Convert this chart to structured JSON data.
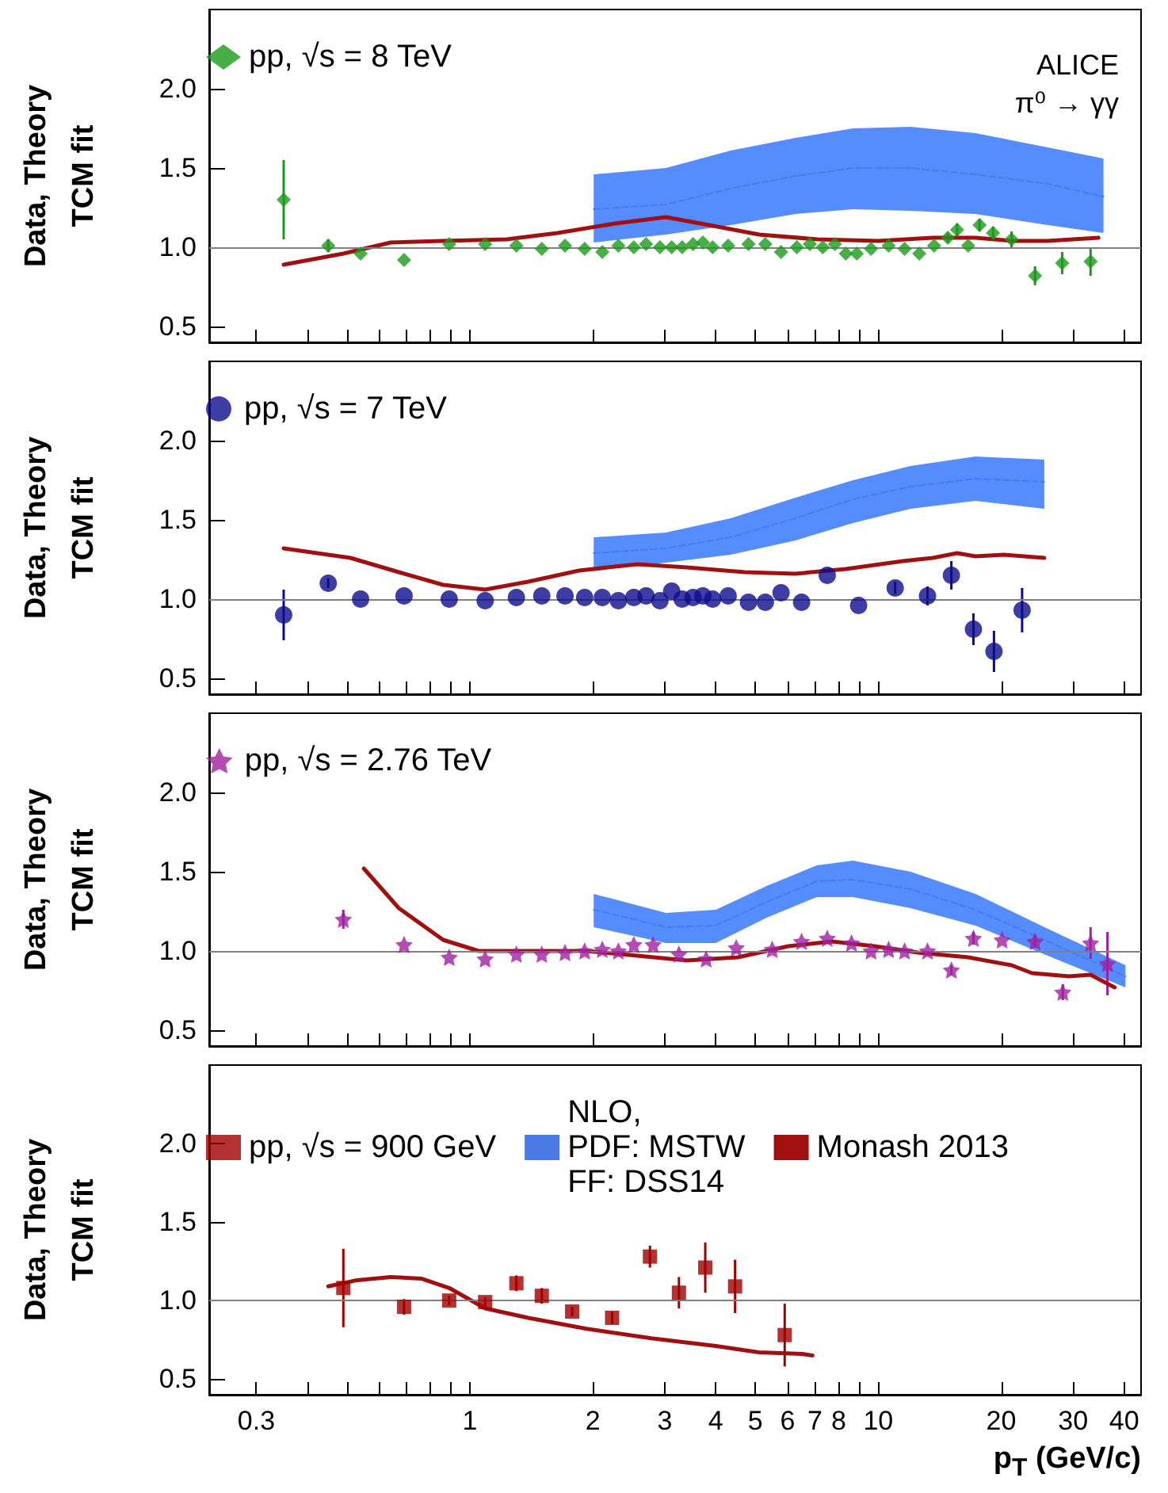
{
  "chart_data": [
    {
      "type": "scatter",
      "ylabel": "Data, Theory\nTCM fit",
      "annotations": [
        "ALICE",
        "π⁰ → γγ"
      ],
      "xlim": [
        0.23,
        44
      ],
      "xticks": [
        0.3,
        {
          "value": 0.4,
          "label": null
        },
        {
          "value": 0.5,
          "label": null
        },
        {
          "value": 0.6,
          "label": null
        },
        {
          "value": 0.7,
          "label": null
        },
        {
          "value": 0.8,
          "label": null
        },
        {
          "value": 0.9,
          "label": null
        },
        1,
        2,
        3,
        4,
        5,
        6,
        7,
        8,
        {
          "value": 9,
          "label": null
        },
        10,
        20,
        30,
        40
      ],
      "ylim": [
        0.4,
        2.5
      ],
      "yticks": [
        {
          "value": 0.5,
          "label": "0.5"
        },
        {
          "value": 1,
          "label": "1.0"
        },
        {
          "value": 1.5,
          "label": "1.5"
        },
        {
          "value": 2,
          "label": "2.0"
        }
      ],
      "tick_labels": "y",
      "legend": "top left",
      "ref_lines": [
        {
          "axis": "y",
          "value": 1,
          "color": "#808080"
        }
      ],
      "log": "x",
      "series": [
        {
          "name": "pp, √s = 8 TeV",
          "marker": "diamond",
          "color": "#1a9a1a",
          "x": [
            0.35,
            0.45,
            0.54,
            0.69,
            0.89,
            1.09,
            1.3,
            1.5,
            1.71,
            1.91,
            2.11,
            2.31,
            2.52,
            2.7,
            2.92,
            3.12,
            3.31,
            3.52,
            3.72,
            3.93,
            4.29,
            4.81,
            5.29,
            5.78,
            6.32,
            6.8,
            7.31,
            7.83,
            8.33,
            8.86,
            9.6,
            10.6,
            11.6,
            12.6,
            13.7,
            14.8,
            15.6,
            16.6,
            17.7,
            19.1,
            21.2,
            24.2,
            28.2,
            33.1
          ],
          "values": [
            1.3,
            1.01,
            0.96,
            0.92,
            1.02,
            1.02,
            1.01,
            0.99,
            1.01,
            0.99,
            0.97,
            1.01,
            1.0,
            1.02,
            1.0,
            1.0,
            1.0,
            1.02,
            1.03,
            1.0,
            1.01,
            1.02,
            1.02,
            0.97,
            1.0,
            1.02,
            1.0,
            1.02,
            0.96,
            0.96,
            0.99,
            1.01,
            0.99,
            0.96,
            1.01,
            1.06,
            1.11,
            1.01,
            1.14,
            1.09,
            1.05,
            0.82,
            0.9,
            0.91
          ],
          "errors": [
            0.25,
            0.04,
            null,
            null,
            null,
            null,
            null,
            null,
            null,
            null,
            null,
            null,
            null,
            null,
            null,
            null,
            null,
            null,
            null,
            null,
            null,
            null,
            null,
            null,
            null,
            null,
            null,
            null,
            null,
            null,
            null,
            null,
            null,
            null,
            null,
            0.03,
            0.04,
            null,
            0.04,
            0.04,
            0.05,
            0.06,
            0.07,
            0.09
          ]
        },
        {
          "type": "line",
          "line_style": "dashed",
          "color": "#4a7ae6",
          "x": [
            2.01,
            3.02,
            4.35,
            6.27,
            8.67,
            12.0,
            17.3,
            26.0,
            35.6
          ],
          "values": [
            1.24,
            1.27,
            1.37,
            1.45,
            1.5,
            1.5,
            1.46,
            1.4,
            1.32
          ],
          "lower": [
            1.03,
            1.08,
            1.14,
            1.21,
            1.24,
            1.23,
            1.21,
            1.14,
            1.09
          ],
          "upper": [
            1.46,
            1.5,
            1.61,
            1.69,
            1.75,
            1.76,
            1.72,
            1.63,
            1.56
          ]
        },
        {
          "type": "line",
          "line_style": "solid",
          "color": "#a01010",
          "x": [
            0.35,
            0.49,
            0.64,
            0.86,
            1.23,
            1.64,
            2.27,
            3.02,
            3.85,
            5.11,
            7.1,
            10,
            13.6,
            17.3,
            21.2,
            26,
            34.6
          ],
          "values": [
            0.89,
            0.96,
            1.03,
            1.04,
            1.05,
            1.09,
            1.15,
            1.19,
            1.14,
            1.08,
            1.05,
            1.04,
            1.06,
            1.06,
            1.04,
            1.04,
            1.06
          ]
        }
      ]
    },
    {
      "type": "scatter",
      "ylabel": "Data, Theory\nTCM fit",
      "xlim": [
        0.23,
        44
      ],
      "xticks": [
        0.3,
        {
          "value": 0.4,
          "label": null
        },
        {
          "value": 0.5,
          "label": null
        },
        {
          "value": 0.6,
          "label": null
        },
        {
          "value": 0.7,
          "label": null
        },
        {
          "value": 0.8,
          "label": null
        },
        {
          "value": 0.9,
          "label": null
        },
        1,
        2,
        3,
        4,
        5,
        6,
        7,
        8,
        {
          "value": 9,
          "label": null
        },
        10,
        20,
        30,
        40
      ],
      "ylim": [
        0.4,
        2.5
      ],
      "yticks": [
        {
          "value": 0.5,
          "label": "0.5"
        },
        {
          "value": 1,
          "label": "1.0"
        },
        {
          "value": 1.5,
          "label": "1.5"
        },
        {
          "value": 2,
          "label": "2.0"
        }
      ],
      "tick_labels": "y",
      "legend": "top left",
      "ref_lines": [
        {
          "axis": "y",
          "value": 1,
          "color": "#808080"
        }
      ],
      "log": "x",
      "series": [
        {
          "name": "pp, √s = 7 TeV",
          "marker": "circle",
          "color": "#0c0c8c",
          "x": [
            0.35,
            0.45,
            0.54,
            0.69,
            0.89,
            1.09,
            1.3,
            1.5,
            1.71,
            1.91,
            2.11,
            2.31,
            2.52,
            2.7,
            2.92,
            3.12,
            3.31,
            3.52,
            3.72,
            3.93,
            4.29,
            4.81,
            5.29,
            5.78,
            6.49,
            7.5,
            8.95,
            11.0,
            13.2,
            15.1,
            17.1,
            19.2,
            22.5
          ],
          "values": [
            0.9,
            1.1,
            1.0,
            1.02,
            1.0,
            0.99,
            1.01,
            1.02,
            1.02,
            1.01,
            1.01,
            0.99,
            1.01,
            1.02,
            0.99,
            1.05,
            1.0,
            1.01,
            1.02,
            1.0,
            1.02,
            0.98,
            0.98,
            1.04,
            0.98,
            1.15,
            0.96,
            1.07,
            1.02,
            1.15,
            0.81,
            0.67,
            0.93
          ],
          "errors": [
            0.16,
            0.03,
            null,
            null,
            null,
            null,
            null,
            null,
            null,
            null,
            null,
            null,
            null,
            null,
            null,
            null,
            null,
            null,
            null,
            null,
            null,
            null,
            null,
            null,
            null,
            null,
            null,
            0.04,
            0.06,
            0.09,
            0.1,
            0.13,
            0.14
          ]
        },
        {
          "type": "line",
          "line_style": "dashed",
          "color": "#4a7ae6",
          "x": [
            2.01,
            3.02,
            4.35,
            6.27,
            8.67,
            12.0,
            17.3,
            25.5
          ],
          "values": [
            1.29,
            1.32,
            1.39,
            1.51,
            1.63,
            1.71,
            1.76,
            1.74
          ],
          "lower": [
            1.18,
            1.23,
            1.28,
            1.37,
            1.48,
            1.57,
            1.62,
            1.57
          ],
          "upper": [
            1.39,
            1.42,
            1.51,
            1.64,
            1.75,
            1.84,
            1.9,
            1.88
          ]
        },
        {
          "type": "line",
          "line_style": "solid",
          "color": "#a01010",
          "x": [
            0.35,
            0.51,
            0.67,
            0.86,
            1.09,
            1.39,
            1.85,
            2.57,
            3.4,
            4.71,
            6.27,
            8.33,
            11.5,
            13.6,
            15.6,
            17.3,
            20.3,
            25.5
          ],
          "values": [
            1.32,
            1.26,
            1.17,
            1.09,
            1.06,
            1.11,
            1.18,
            1.22,
            1.2,
            1.17,
            1.16,
            1.19,
            1.24,
            1.26,
            1.29,
            1.27,
            1.28,
            1.26
          ]
        }
      ]
    },
    {
      "type": "scatter",
      "ylabel": "Data, Theory\nTCM fit",
      "xlim": [
        0.23,
        44
      ],
      "xticks": [
        0.3,
        {
          "value": 0.4,
          "label": null
        },
        {
          "value": 0.5,
          "label": null
        },
        {
          "value": 0.6,
          "label": null
        },
        {
          "value": 0.7,
          "label": null
        },
        {
          "value": 0.8,
          "label": null
        },
        {
          "value": 0.9,
          "label": null
        },
        1,
        2,
        3,
        4,
        5,
        6,
        7,
        8,
        {
          "value": 9,
          "label": null
        },
        10,
        20,
        30,
        40
      ],
      "ylim": [
        0.4,
        2.5
      ],
      "yticks": [
        {
          "value": 0.5,
          "label": "0.5"
        },
        {
          "value": 1,
          "label": "1.0"
        },
        {
          "value": 1.5,
          "label": "1.5"
        },
        {
          "value": 2,
          "label": "2.0"
        }
      ],
      "tick_labels": "y",
      "legend": "top left",
      "ref_lines": [
        {
          "axis": "y",
          "value": 1,
          "color": "#808080"
        }
      ],
      "log": "x",
      "series": [
        {
          "name": "pp, √s = 2.76 TeV",
          "marker": "star",
          "color": "#a020a0",
          "x": [
            0.49,
            0.69,
            0.89,
            1.09,
            1.3,
            1.5,
            1.71,
            1.91,
            2.11,
            2.31,
            2.52,
            2.81,
            3.25,
            3.79,
            4.49,
            5.5,
            6.49,
            7.5,
            8.6,
            9.6,
            10.6,
            11.6,
            13.2,
            15.1,
            17.1,
            20.1,
            24.2,
            28.3,
            33.1,
            36.4
          ],
          "values": [
            1.2,
            1.04,
            0.96,
            0.95,
            0.98,
            0.98,
            0.99,
            1.0,
            1.01,
            1.0,
            1.04,
            1.04,
            0.98,
            0.95,
            1.02,
            1.01,
            1.06,
            1.08,
            1.05,
            1.0,
            1.01,
            1.0,
            1.0,
            0.88,
            1.08,
            1.07,
            1.06,
            0.74,
            1.05,
            0.92
          ],
          "errors": [
            0.06,
            null,
            null,
            null,
            null,
            null,
            null,
            null,
            null,
            null,
            null,
            null,
            null,
            null,
            null,
            null,
            null,
            null,
            null,
            null,
            null,
            null,
            null,
            0.03,
            0.04,
            null,
            0.04,
            0.05,
            0.1,
            0.2
          ]
        },
        {
          "type": "line",
          "line_style": "dashed",
          "color": "#4a7ae6",
          "x": [
            2.01,
            3.02,
            4.0,
            5.33,
            7.07,
            8.67,
            12.0,
            17.3,
            26.0,
            40.3
          ],
          "values": [
            1.26,
            1.15,
            1.16,
            1.31,
            1.44,
            1.45,
            1.39,
            1.26,
            1.06,
            0.84
          ],
          "lower": [
            1.15,
            1.05,
            1.05,
            1.21,
            1.34,
            1.34,
            1.27,
            1.16,
            0.97,
            0.77
          ],
          "upper": [
            1.36,
            1.24,
            1.26,
            1.41,
            1.54,
            1.57,
            1.5,
            1.36,
            1.14,
            0.91
          ]
        },
        {
          "type": "line",
          "line_style": "solid",
          "color": "#a01010",
          "x": [
            0.55,
            0.67,
            0.86,
            1.05,
            1.39,
            1.93,
            2.57,
            3.4,
            4.53,
            6.02,
            7.69,
            9.8,
            12.5,
            16.6,
            21.2,
            23.8,
            29.3,
            33.1,
            37.9
          ],
          "values": [
            1.52,
            1.27,
            1.07,
            1.0,
            1.0,
            1.0,
            0.97,
            0.94,
            0.96,
            1.03,
            1.06,
            1.03,
            0.99,
            0.96,
            0.91,
            0.86,
            0.84,
            0.85,
            0.77
          ]
        }
      ]
    },
    {
      "type": "scatter",
      "ylabel": "Data, Theory\nTCM fit",
      "xlabel": "p$_{T}$ (GeV/c)",
      "xlim": [
        0.23,
        44
      ],
      "xticks": [
        0.3,
        {
          "value": 0.4,
          "label": null
        },
        {
          "value": 0.5,
          "label": null
        },
        {
          "value": 0.6,
          "label": null
        },
        {
          "value": 0.7,
          "label": null
        },
        {
          "value": 0.8,
          "label": null
        },
        {
          "value": 0.9,
          "label": null
        },
        1,
        2,
        3,
        4,
        5,
        6,
        7,
        8,
        {
          "value": 9,
          "label": null
        },
        10,
        20,
        30,
        40
      ],
      "ylim": [
        0.4,
        2.5
      ],
      "yticks": [
        {
          "value": 0.5,
          "label": "0.5"
        },
        {
          "value": 1,
          "label": "1.0"
        },
        {
          "value": 1.5,
          "label": "1.5"
        },
        {
          "value": 2,
          "label": "2.0"
        }
      ],
      "legend": "top",
      "ref_lines": [
        {
          "axis": "y",
          "value": 1,
          "color": "#808080"
        }
      ],
      "log": "x",
      "series": [
        {
          "name": "pp, √s = 900 GeV",
          "marker": "square",
          "color": "#a00000",
          "x": [
            0.49,
            0.69,
            0.89,
            1.09,
            1.3,
            1.5,
            1.78,
            2.23,
            2.76,
            3.25,
            3.77,
            4.46,
            5.9
          ],
          "values": [
            1.08,
            0.96,
            1.0,
            0.99,
            1.11,
            1.03,
            0.93,
            0.89,
            1.28,
            1.05,
            1.21,
            1.09,
            0.78
          ],
          "errors": [
            0.25,
            0.05,
            0.03,
            0.03,
            0.05,
            0.05,
            0.03,
            0.04,
            0.07,
            0.1,
            0.16,
            0.17,
            0.2
          ]
        },
        {
          "name": "NLO,\nPDF: MSTW\nFF: DSS14",
          "type": "line",
          "line_style": "dashed",
          "color": "#4a7ae6"
        },
        {
          "name": "Monash 2013",
          "type": "line",
          "line_style": "solid",
          "color": "#a01010",
          "x": [
            0.45,
            0.53,
            0.64,
            0.76,
            0.89,
            1.09,
            1.39,
            1.93,
            2.78,
            4.0,
            5.1,
            6.5,
            6.9
          ],
          "values": [
            1.09,
            1.13,
            1.15,
            1.14,
            1.08,
            0.95,
            0.89,
            0.82,
            0.76,
            0.71,
            0.67,
            0.66,
            0.65
          ]
        }
      ]
    }
  ]
}
